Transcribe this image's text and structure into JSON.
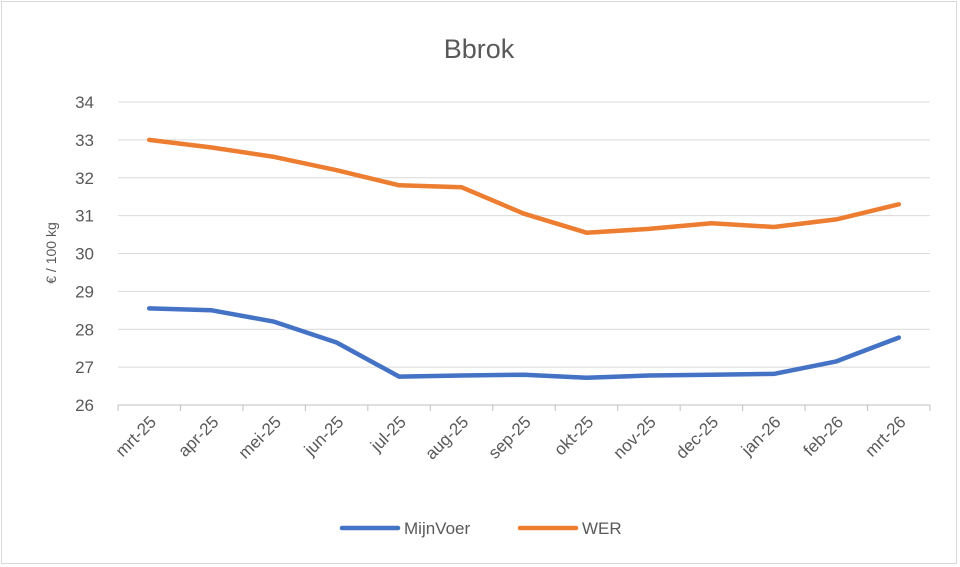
{
  "chart_data": {
    "type": "line",
    "title": "Bbrok",
    "xlabel": "",
    "ylabel": "€ / 100 kg",
    "ylim": [
      26,
      34
    ],
    "yticks": [
      26,
      27,
      28,
      29,
      30,
      31,
      32,
      33,
      34
    ],
    "grid": true,
    "legend_position": "bottom",
    "categories": [
      "mrt-25",
      "apr-25",
      "mei-25",
      "jun-25",
      "jul-25",
      "aug-25",
      "sep-25",
      "okt-25",
      "nov-25",
      "dec-25",
      "jan-26",
      "feb-26",
      "mrt-26"
    ],
    "series": [
      {
        "name": "MijnVoer",
        "color": "#4472c4",
        "values": [
          28.55,
          28.5,
          28.2,
          27.65,
          26.75,
          26.78,
          26.8,
          26.72,
          26.78,
          26.8,
          26.82,
          27.15,
          27.78
        ]
      },
      {
        "name": "WER",
        "color": "#ed7d31",
        "values": [
          33.0,
          32.8,
          32.55,
          32.2,
          31.8,
          31.75,
          31.05,
          30.55,
          30.65,
          30.8,
          30.7,
          30.9,
          31.3
        ]
      }
    ]
  }
}
